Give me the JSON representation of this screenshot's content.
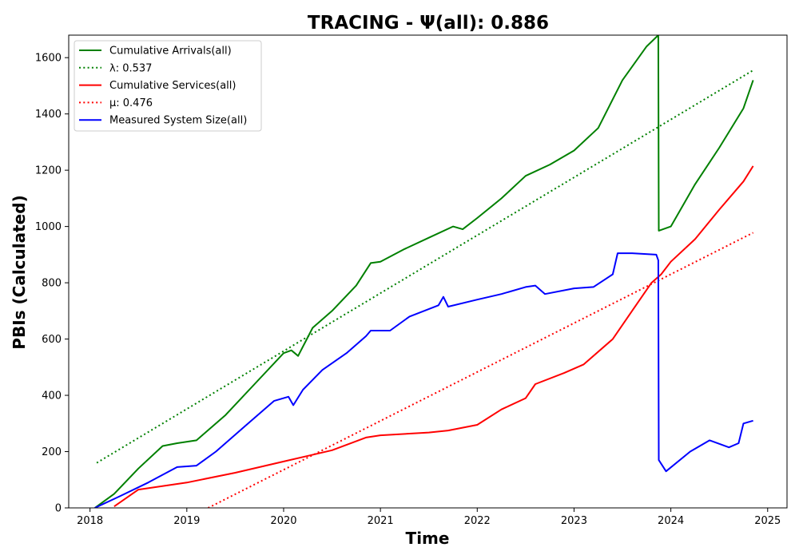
{
  "chart_data": {
    "type": "line",
    "title": "TRACING -  Ψ(all): 0.886",
    "xlabel": "Time",
    "ylabel": "PBIs (Calculated)",
    "xlim": [
      2017.78,
      2025.2
    ],
    "ylim": [
      0,
      1680
    ],
    "x_ticks": [
      2018,
      2019,
      2020,
      2021,
      2022,
      2023,
      2024,
      2025
    ],
    "x_tick_labels": [
      "2018",
      "2019",
      "2020",
      "2021",
      "2022",
      "2023",
      "2024",
      "2025"
    ],
    "y_ticks": [
      0,
      200,
      400,
      600,
      800,
      1000,
      1200,
      1400,
      1600
    ],
    "y_tick_labels": [
      "0",
      "200",
      "400",
      "600",
      "800",
      "1000",
      "1200",
      "1400",
      "1600"
    ],
    "grid": false,
    "legend_position": "top-left",
    "series": [
      {
        "name": "Cumulative Arrivals(all)",
        "color": "#008000",
        "style": "solid",
        "x": [
          2018.05,
          2018.25,
          2018.5,
          2018.75,
          2018.9,
          2019.1,
          2019.4,
          2019.7,
          2020.0,
          2020.08,
          2020.15,
          2020.3,
          2020.5,
          2020.75,
          2020.9,
          2021.0,
          2021.25,
          2021.5,
          2021.75,
          2021.85,
          2022.0,
          2022.25,
          2022.5,
          2022.75,
          2023.0,
          2023.25,
          2023.5,
          2023.75,
          2023.87,
          2023.875,
          2024.0,
          2024.25,
          2024.5,
          2024.75,
          2024.85
        ],
        "y": [
          0,
          50,
          140,
          220,
          230,
          240,
          330,
          440,
          550,
          560,
          540,
          640,
          700,
          790,
          870,
          875,
          920,
          960,
          1000,
          990,
          1030,
          1100,
          1180,
          1220,
          1270,
          1350,
          1520,
          1640,
          1680,
          985,
          1000,
          1150,
          1280,
          1420,
          1520
        ]
      },
      {
        "name": "λ: 0.537",
        "color": "#008000",
        "style": "dotted",
        "x": [
          2018.07,
          2024.85
        ],
        "y": [
          160,
          1555
        ]
      },
      {
        "name": "Cumulative Services(all)",
        "color": "#ff0000",
        "style": "solid",
        "x": [
          2018.25,
          2018.5,
          2019.0,
          2019.5,
          2020.0,
          2020.5,
          2020.85,
          2021.0,
          2021.5,
          2021.7,
          2022.0,
          2022.25,
          2022.5,
          2022.6,
          2022.9,
          2023.1,
          2023.4,
          2023.6,
          2023.8,
          2023.9,
          2024.0,
          2024.25,
          2024.5,
          2024.75,
          2024.85
        ],
        "y": [
          5,
          65,
          90,
          125,
          165,
          205,
          250,
          258,
          268,
          275,
          295,
          350,
          390,
          440,
          480,
          510,
          600,
          700,
          800,
          830,
          875,
          955,
          1060,
          1160,
          1215
        ]
      },
      {
        "name": "μ: 0.476",
        "color": "#ff0000",
        "style": "dotted",
        "x": [
          2019.22,
          2024.85
        ],
        "y": [
          0,
          978
        ]
      },
      {
        "name": "Measured System Size(all)",
        "color": "#0000ff",
        "style": "solid",
        "x": [
          2018.05,
          2018.3,
          2018.6,
          2018.9,
          2019.1,
          2019.3,
          2019.6,
          2019.9,
          2020.05,
          2020.1,
          2020.2,
          2020.4,
          2020.65,
          2020.85,
          2020.9,
          2021.1,
          2021.3,
          2021.6,
          2021.65,
          2021.7,
          2022.0,
          2022.25,
          2022.5,
          2022.6,
          2022.7,
          2023.0,
          2023.2,
          2023.4,
          2023.45,
          2023.6,
          2023.85,
          2023.87,
          2023.875,
          2023.95,
          2024.2,
          2024.4,
          2024.6,
          2024.7,
          2024.75,
          2024.85
        ],
        "y": [
          0,
          40,
          90,
          145,
          150,
          200,
          290,
          380,
          395,
          365,
          420,
          490,
          550,
          610,
          630,
          630,
          680,
          720,
          750,
          715,
          740,
          760,
          785,
          790,
          760,
          780,
          785,
          830,
          905,
          905,
          900,
          880,
          170,
          130,
          200,
          240,
          215,
          230,
          300,
          310
        ]
      }
    ]
  }
}
